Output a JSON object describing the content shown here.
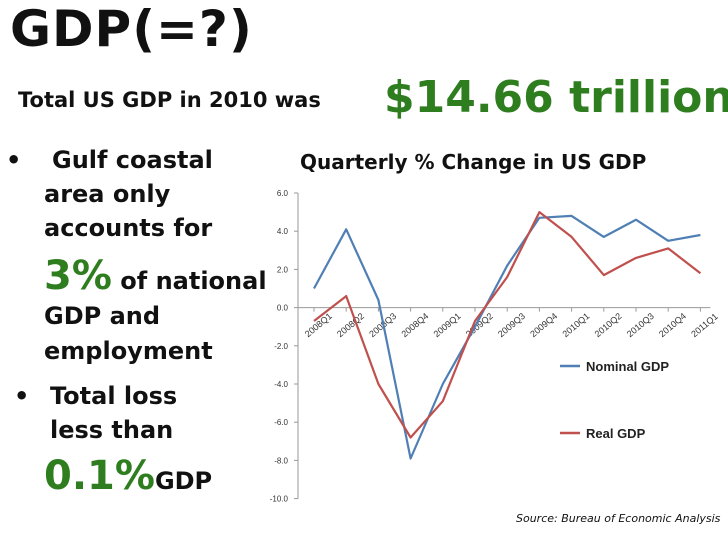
{
  "title": "GDP(=?)",
  "subtitle": "Total US GDP in 2010  was",
  "gdp_value": "$14.66 trillion",
  "bullets": {
    "bullet_char": "•",
    "b1_l1": "Gulf coastal",
    "b1_l2": "area only",
    "b1_l3": "accounts for",
    "b1_pct": "3%",
    "b1_l4_rest": " of national",
    "b1_l5": "GDP and",
    "b1_l6": "employment",
    "b2_l1": "Total loss",
    "b2_l2": "less than",
    "b2_pct": "0.1%",
    "b2_rest": "GDP"
  },
  "source": "Source: Bureau of Economic Analysis",
  "colors": {
    "green": "#2e7d1e",
    "nominal": "#4f7fb5",
    "real": "#c0504d"
  },
  "chart_data": {
    "type": "line",
    "title": "Quarterly % Change in US GDP",
    "categories": [
      "2008Q1",
      "2008Q2",
      "2008Q3",
      "2008Q4",
      "2009Q1",
      "2009Q2",
      "2009Q3",
      "2009Q4",
      "2010Q1",
      "2010Q2",
      "2010Q3",
      "2010Q4",
      "2011Q1"
    ],
    "ylim": [
      -10,
      6
    ],
    "yticks": [
      "6.0",
      "4.0",
      "2.0",
      "0.0",
      "-2.0",
      "-4.0",
      "-6.0",
      "-8.0",
      "-10.0"
    ],
    "series": [
      {
        "name": "Nominal GDP",
        "color": "#4f7fb5",
        "values": [
          1.0,
          4.1,
          0.4,
          -7.9,
          -4.0,
          -1.0,
          2.2,
          4.7,
          4.8,
          3.7,
          4.6,
          3.5,
          3.8
        ]
      },
      {
        "name": "Real GDP",
        "color": "#c0504d",
        "values": [
          -0.7,
          0.6,
          -4.0,
          -6.8,
          -4.9,
          -0.7,
          1.6,
          5.0,
          3.7,
          1.7,
          2.6,
          3.1,
          1.8
        ]
      }
    ],
    "legend": "right"
  }
}
